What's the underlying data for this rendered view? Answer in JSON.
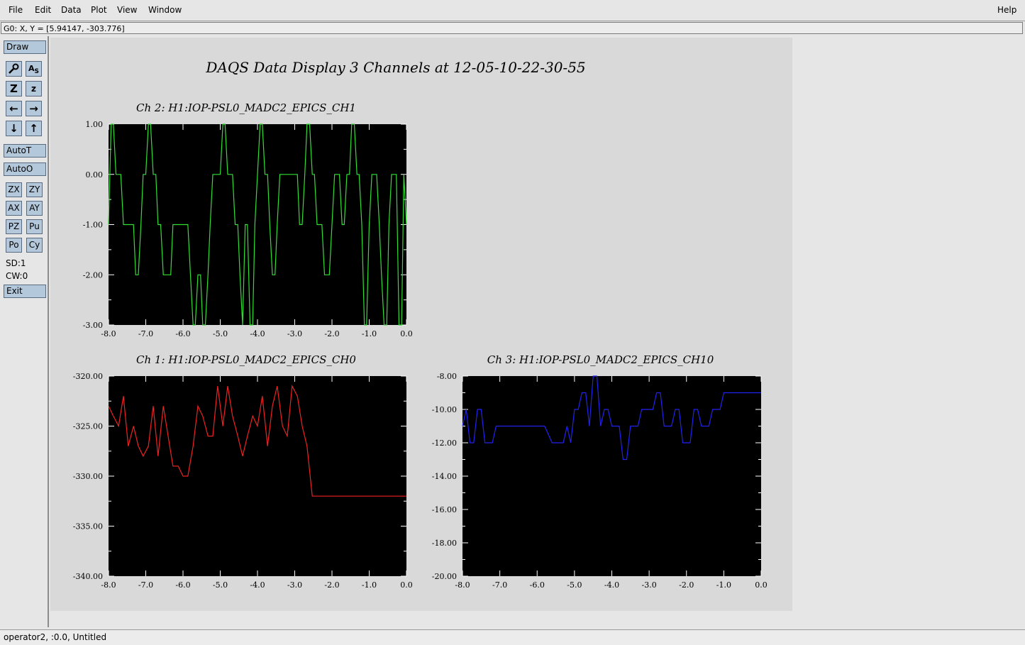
{
  "menu": {
    "file": "File",
    "edit": "Edit",
    "data": "Data",
    "plot": "Plot",
    "view": "View",
    "window": "Window",
    "help": "Help"
  },
  "coord_readout": "G0: X, Y = [5.94147, -303.776]",
  "toolbar": {
    "draw": "Draw",
    "autot": "AutoT",
    "autoo": "AutoO",
    "zx": "ZX",
    "zy": "ZY",
    "ax": "AX",
    "ay": "AY",
    "pz": "PZ",
    "pu": "Pu",
    "po": "Po",
    "cy": "Cy",
    "sd": "SD:1",
    "cw": "CW:0",
    "exit": "Exit",
    "icons": [
      "magnify-icon",
      "autoscale-icon",
      "zoom-out-icon",
      "zoom-in-icon",
      "arrow-left-icon",
      "arrow-right-icon",
      "arrow-down-icon",
      "arrow-up-icon"
    ]
  },
  "main_title": "DAQS Data Display 3 Channels at 12-05-10-22-30-55",
  "status_bottom": "operator2, :0.0, Untitled",
  "chart_data": [
    {
      "type": "line",
      "title": "Ch 2:  H1:IOP-PSL0_MADC2_EPICS_CH1",
      "color": "#33dd33",
      "background": "#000000",
      "xlim": [
        -8.0,
        0.0
      ],
      "ylim": [
        -3.0,
        1.0
      ],
      "xticks": [
        "-8.0",
        "-7.0",
        "-6.0",
        "-5.0",
        "-4.0",
        "-3.0",
        "-2.0",
        "-1.0",
        "0.0"
      ],
      "yticks": [
        "1.00",
        "0.00",
        "-1.00",
        "-2.00",
        "-3.00"
      ],
      "x": [
        -8.0,
        -7.93,
        -7.87,
        -7.8,
        -7.73,
        -7.67,
        -7.6,
        -7.53,
        -7.47,
        -7.4,
        -7.33,
        -7.27,
        -7.2,
        -7.13,
        -7.07,
        -7.0,
        -6.93,
        -6.87,
        -6.8,
        -6.73,
        -6.67,
        -6.6,
        -6.53,
        -6.47,
        -6.4,
        -6.33,
        -6.27,
        -6.2,
        -6.13,
        -6.07,
        -6.0,
        -5.93,
        -5.87,
        -5.8,
        -5.73,
        -5.67,
        -5.6,
        -5.53,
        -5.47,
        -5.4,
        -5.33,
        -5.27,
        -5.2,
        -5.13,
        -5.07,
        -5.0,
        -4.93,
        -4.87,
        -4.8,
        -4.73,
        -4.67,
        -4.6,
        -4.53,
        -4.47,
        -4.4,
        -4.33,
        -4.27,
        -4.2,
        -4.13,
        -4.07,
        -4.0,
        -3.93,
        -3.87,
        -3.8,
        -3.73,
        -3.67,
        -3.6,
        -3.53,
        -3.47,
        -3.4,
        -3.33,
        -3.27,
        -3.2,
        -3.13,
        -3.07,
        -3.0,
        -2.93,
        -2.87,
        -2.8,
        -2.73,
        -2.67,
        -2.6,
        -2.53,
        -2.47,
        -2.4,
        -2.33,
        -2.27,
        -2.2,
        -2.13,
        -2.07,
        -2.0,
        -1.93,
        -1.87,
        -1.8,
        -1.73,
        -1.67,
        -1.6,
        -1.53,
        -1.47,
        -1.4,
        -1.33,
        -1.27,
        -1.2,
        -1.13,
        -1.07,
        -1.0,
        -0.93,
        -0.87,
        -0.8,
        -0.73,
        -0.67,
        -0.6,
        -0.53,
        -0.47,
        -0.4,
        -0.33,
        -0.27,
        -0.2,
        -0.13,
        -0.07,
        0.0
      ],
      "values": [
        -1,
        1,
        1,
        0,
        0,
        0,
        -1,
        -1,
        -1,
        -1,
        -1,
        -2,
        -2,
        -1,
        0,
        0,
        1,
        1,
        0,
        0,
        -1,
        -1,
        -2,
        -2,
        -2,
        -2,
        -1,
        -1,
        -1,
        -1,
        -1,
        -1,
        -1,
        -2,
        -3,
        -3,
        -2,
        -2,
        -3,
        -3,
        -2,
        -1,
        0,
        0,
        0,
        0,
        1,
        1,
        0,
        0,
        0,
        -1,
        -1,
        -2,
        -3,
        -1,
        -1,
        -3,
        -3,
        -1,
        0,
        1,
        1,
        0,
        0,
        -1,
        -2,
        -2,
        -1,
        0,
        0,
        0,
        0,
        0,
        0,
        0,
        0,
        -1,
        -1,
        0,
        1,
        1,
        0,
        0,
        -1,
        -1,
        -1,
        -2,
        -2,
        -2,
        -1,
        0,
        0,
        0,
        -1,
        -1,
        0,
        0,
        1,
        1,
        0,
        0,
        -1,
        -3,
        -3,
        -1,
        0,
        0,
        0,
        -1,
        -2,
        -3,
        -3,
        -1,
        0,
        0,
        0,
        -3,
        -3,
        0,
        -1
      ],
      "grid": false
    },
    {
      "type": "line",
      "title": "Ch 1:  H1:IOP-PSL0_MADC2_EPICS_CH0",
      "color": "#ee2222",
      "background": "#000000",
      "xlim": [
        -8.0,
        0.0
      ],
      "ylim": [
        -340.0,
        -320.0
      ],
      "xticks": [
        "-8.0",
        "-7.0",
        "-6.0",
        "-5.0",
        "-4.0",
        "-3.0",
        "-2.0",
        "-1.0",
        "0.0"
      ],
      "yticks": [
        "-320.00",
        "-325.00",
        "-330.00",
        "-335.00",
        "-340.00"
      ],
      "x": [
        -8.0,
        -7.87,
        -7.73,
        -7.6,
        -7.47,
        -7.33,
        -7.2,
        -7.07,
        -6.93,
        -6.8,
        -6.67,
        -6.53,
        -6.4,
        -6.27,
        -6.13,
        -6.0,
        -5.87,
        -5.73,
        -5.6,
        -5.47,
        -5.33,
        -5.2,
        -5.07,
        -4.93,
        -4.8,
        -4.67,
        -4.53,
        -4.4,
        -4.27,
        -4.13,
        -4.0,
        -3.87,
        -3.73,
        -3.6,
        -3.47,
        -3.33,
        -3.2,
        -3.07,
        -2.93,
        -2.8,
        -2.67,
        -2.53,
        -2.4,
        -2.27,
        -2.13,
        -2.0,
        -1.87,
        -1.73,
        -1.6,
        -1.47,
        -1.33,
        -1.2,
        -1.07,
        -0.93,
        -0.8,
        -0.67,
        -0.53,
        -0.4,
        -0.27,
        -0.13,
        0.0
      ],
      "values": [
        -323,
        -324,
        -325,
        -322,
        -327,
        -325,
        -327,
        -328,
        -327,
        -323,
        -328,
        -323,
        -326,
        -329,
        -329,
        -330,
        -330,
        -327,
        -323,
        -324,
        -326,
        -326,
        -321,
        -325,
        -321,
        -324,
        -326,
        -328,
        -326,
        -324,
        -325,
        -322,
        -327,
        -323,
        -321,
        -325,
        -326,
        -321,
        -322,
        -325,
        -327,
        -332,
        -332,
        -332,
        -332,
        -332,
        -332,
        -332,
        -332,
        -332,
        -332,
        -332,
        -332,
        -332,
        -332,
        -332,
        -332,
        -332,
        -332,
        -332,
        -332
      ],
      "grid": false
    },
    {
      "type": "line",
      "title": "Ch 3:  H1:IOP-PSL0_MADC2_EPICS_CH10",
      "color": "#2222ee",
      "background": "#000000",
      "xlim": [
        -8.0,
        0.0
      ],
      "ylim": [
        -20.0,
        -8.0
      ],
      "xticks": [
        "-8.0",
        "-7.0",
        "-6.0",
        "-5.0",
        "-4.0",
        "-3.0",
        "-2.0",
        "-1.0",
        "0.0"
      ],
      "yticks": [
        "-8.00",
        "-10.00",
        "-12.00",
        "-14.00",
        "-16.00",
        "-18.00",
        "-20.00"
      ],
      "x": [
        -8.0,
        -7.9,
        -7.8,
        -7.7,
        -7.6,
        -7.5,
        -7.4,
        -7.3,
        -7.2,
        -7.1,
        -7.0,
        -6.8,
        -6.6,
        -6.4,
        -6.2,
        -6.0,
        -5.8,
        -5.6,
        -5.4,
        -5.3,
        -5.2,
        -5.1,
        -5.0,
        -4.9,
        -4.8,
        -4.7,
        -4.6,
        -4.5,
        -4.4,
        -4.3,
        -4.2,
        -4.1,
        -4.0,
        -3.9,
        -3.8,
        -3.7,
        -3.6,
        -3.5,
        -3.4,
        -3.3,
        -3.2,
        -3.1,
        -3.0,
        -2.9,
        -2.8,
        -2.7,
        -2.6,
        -2.5,
        -2.4,
        -2.3,
        -2.2,
        -2.1,
        -2.0,
        -1.9,
        -1.8,
        -1.7,
        -1.6,
        -1.5,
        -1.4,
        -1.3,
        -1.2,
        -1.1,
        -1.0,
        -0.9,
        -0.8,
        -0.7,
        -0.6,
        -0.5,
        -0.4,
        -0.3,
        -0.2,
        -0.1,
        0.0
      ],
      "values": [
        -11,
        -10,
        -12,
        -12,
        -10,
        -10,
        -12,
        -12,
        -12,
        -11,
        -11,
        -11,
        -11,
        -11,
        -11,
        -11,
        -11,
        -12,
        -12,
        -12,
        -11,
        -12,
        -10,
        -10,
        -9,
        -9,
        -11,
        -8,
        -8,
        -11,
        -10,
        -10,
        -11,
        -11,
        -11,
        -13,
        -13,
        -11,
        -11,
        -11,
        -10,
        -10,
        -10,
        -10,
        -9,
        -9,
        -11,
        -11,
        -11,
        -10,
        -10,
        -12,
        -12,
        -12,
        -10,
        -10,
        -11,
        -11,
        -11,
        -10,
        -10,
        -10,
        -9,
        -9,
        -9,
        -9,
        -9,
        -9,
        -9,
        -9,
        -9,
        -9,
        -9
      ],
      "grid": false
    }
  ]
}
